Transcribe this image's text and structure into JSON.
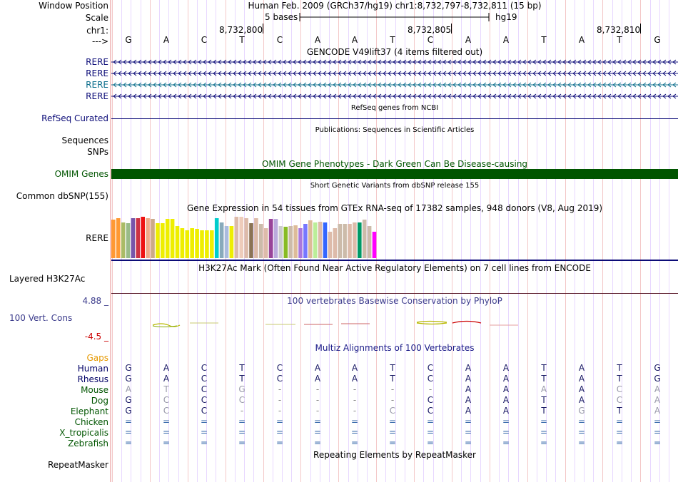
{
  "header": {
    "window_position_label": "Window Position",
    "window_position_value": "Human Feb. 2009 (GRCh37/hg19)   chr1:8,732,797-8,732,811 (15 bp)",
    "scale_label": "Scale",
    "scale_value": "5 bases",
    "scale_db": "hg19",
    "chrom_label": "chr1:",
    "arrow_label": "--->",
    "coords": [
      "8,732,800",
      "8,732,805",
      "8,732,810"
    ],
    "bases": [
      "G",
      "A",
      "C",
      "T",
      "C",
      "A",
      "A",
      "T",
      "C",
      "A",
      "A",
      "T",
      "A",
      "T",
      "G"
    ]
  },
  "tracks": {
    "gencode": {
      "title": "GENCODE V49lift37 (4 items filtered out)",
      "items": [
        "RERE",
        "RERE",
        "RERE",
        "RERE"
      ],
      "colors": [
        "#0c0c78",
        "#0c0c78",
        "#0c6e8c",
        "#0c0c78"
      ]
    },
    "refseq": {
      "title": "RefSeq genes from NCBI",
      "label": "RefSeq Curated",
      "color": "#0c0c78"
    },
    "publications": {
      "title": "Publications: Sequences in Scientific Articles",
      "label1": "Sequences",
      "label2": "SNPs"
    },
    "omim": {
      "title": "OMIM Gene Phenotypes - Dark Green Can Be Disease-causing",
      "label": "OMIM Genes",
      "color": "#005500"
    },
    "dbsnp": {
      "title": "Short Genetic Variants from dbSNP release 155",
      "label": "Common dbSNP(155)"
    },
    "gtex": {
      "title": "Gene Expression in 54 tissues from GTEx RNA-seq of 17382 samples, 948 donors (V8, Aug 2019)",
      "label": "RERE",
      "bar_heights": [
        0.93,
        0.97,
        0.87,
        0.85,
        0.97,
        0.97,
        1.0,
        0.97,
        0.95,
        0.85,
        0.85,
        0.95,
        0.95,
        0.77,
        0.73,
        0.68,
        0.72,
        0.7,
        0.68,
        0.68,
        0.68,
        0.97,
        0.87,
        0.78,
        0.77,
        1.0,
        1.0,
        0.97,
        0.85,
        0.97,
        0.82,
        0.73,
        0.95,
        0.95,
        0.77,
        0.75,
        0.77,
        0.8,
        0.72,
        0.82,
        0.92,
        0.87,
        0.88,
        0.87,
        0.63,
        0.73,
        0.83,
        0.83,
        0.83,
        0.87,
        0.87,
        0.93,
        0.78,
        0.63
      ],
      "bar_colors": [
        "#ff9933",
        "#ff9933",
        "#aabb66",
        "#99bb88",
        "#7755aa",
        "#cc3344",
        "#ee1111",
        "#eeaa88",
        "#ccaa88",
        "#eeee00",
        "#eeee00",
        "#eeee00",
        "#eeee00",
        "#eeee00",
        "#eeee00",
        "#eeee00",
        "#eeee00",
        "#eeee00",
        "#eeee00",
        "#eeee00",
        "#eeee00",
        "#00cccc",
        "#88aabb",
        "#aabbdd",
        "#eeee00",
        "#ddbbaa",
        "#eeccbb",
        "#ddbbaa",
        "#8b7355",
        "#ddbbaa",
        "#ccbbaa",
        "#ddbbaa",
        "#994499",
        "#bbaadd",
        "#cccccc",
        "#88bb22",
        "#ccbbaa",
        "#ddbb99",
        "#aa77dd",
        "#7777ff",
        "#ddbb99",
        "#bbee99",
        "#ddbbaa",
        "#3366ff",
        "#ddbbaa",
        "#ddbbaa",
        "#ccbbaa",
        "#ccbbaa",
        "#ddbbaa",
        "#ddbbaa",
        "#009966",
        "#ccbbaa",
        "#ccbbaa",
        "#ff00ff"
      ]
    },
    "h3k27ac": {
      "title": "H3K27Ac Mark (Often Found Near Active Regulatory Elements) on 7 cell lines from ENCODE",
      "label": "Layered H3K27Ac"
    },
    "phylop": {
      "title": "100 vertebrates Basewise Conservation by PhyloP",
      "label": "100 Vert. Cons",
      "max_label": "4.88 _",
      "min_label": "-4.5 _",
      "color": "#3c3c8c"
    },
    "multiz": {
      "title": "Multiz Alignments of 100 Vertebrates",
      "gaps_label": "Gaps",
      "gaps_color": "#e69900",
      "species": [
        {
          "name": "Human",
          "color": "#000066",
          "bases": [
            "G",
            "A",
            "C",
            "T",
            "C",
            "A",
            "A",
            "T",
            "C",
            "A",
            "A",
            "T",
            "A",
            "T",
            "G"
          ]
        },
        {
          "name": "Rhesus",
          "color": "#000066",
          "bases": [
            "G",
            "A",
            "C",
            "T",
            "C",
            "A",
            "A",
            "T",
            "C",
            "A",
            "A",
            "T",
            "A",
            "T",
            "G"
          ]
        },
        {
          "name": "Mouse",
          "color": "#005500",
          "bases": [
            "A",
            "T",
            "C",
            "G",
            "-",
            "-",
            "-",
            "-",
            "-",
            "A",
            "A",
            "A",
            "A",
            "C",
            "A"
          ]
        },
        {
          "name": "Dog",
          "color": "#005500",
          "bases": [
            "G",
            "C",
            "C",
            "C",
            "-",
            "-",
            "-",
            "-",
            "C",
            "A",
            "A",
            "T",
            "A",
            "C",
            "A"
          ]
        },
        {
          "name": "Elephant",
          "color": "#005500",
          "bases": [
            "G",
            "C",
            "C",
            "-",
            "-",
            "-",
            "-",
            "C",
            "C",
            "A",
            "A",
            "T",
            "G",
            "T",
            "A"
          ]
        },
        {
          "name": "Chicken",
          "color": "#005500",
          "bases": [
            "=",
            "=",
            "=",
            "=",
            "=",
            "=",
            "=",
            "=",
            "=",
            "=",
            "=",
            "=",
            "=",
            "=",
            "="
          ]
        },
        {
          "name": "X_tropicalis",
          "color": "#005500",
          "bases": [
            "=",
            "=",
            "=",
            "=",
            "=",
            "=",
            "=",
            "=",
            "=",
            "=",
            "=",
            "=",
            "=",
            "=",
            "="
          ]
        },
        {
          "name": "Zebrafish",
          "color": "#005500",
          "bases": [
            "=",
            "=",
            "=",
            "=",
            "=",
            "=",
            "=",
            "=",
            "=",
            "=",
            "=",
            "=",
            "=",
            "=",
            "="
          ]
        }
      ]
    },
    "repeatmasker": {
      "title": "Repeating Elements by RepeatMasker",
      "label": "RepeatMasker"
    }
  }
}
